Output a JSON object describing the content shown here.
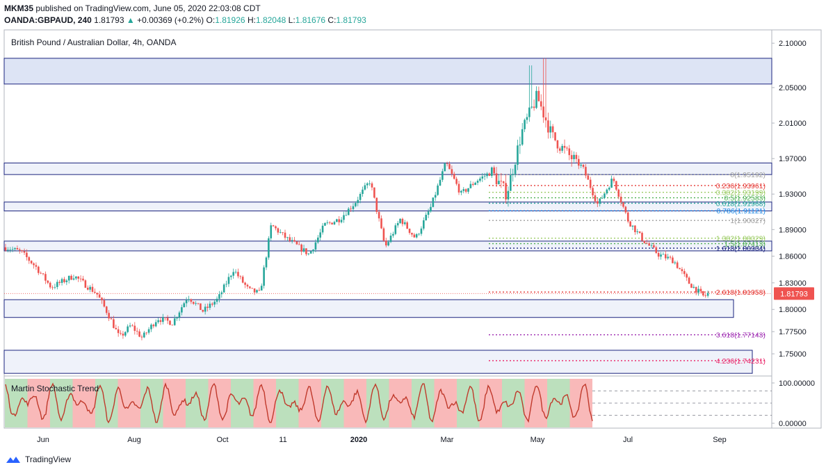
{
  "header": {
    "author": "MKM35",
    "published": "published on TradingView.com, June 05, 2020 22:03:08 CDT",
    "symbol": "OANDA:GBPAUD, 240",
    "last": "1.81793",
    "change_arrow": "▲",
    "change": "+0.00369 (+0.2%)",
    "o_label": "O:",
    "o": "1.81926",
    "h_label": "H:",
    "h": "1.82048",
    "l_label": "L:",
    "l": "1.81676",
    "c_label": "C:",
    "c": "1.81793"
  },
  "chart_title": "British Pound / Australian Dollar, 4h, OANDA",
  "footer": {
    "brand": "TradingView",
    "brand_icon": "tradingview-logo-icon"
  },
  "colors": {
    "candle_up": "#26a69a",
    "candle_down": "#ef5350",
    "zone_fill": "#dbe3f4",
    "zone_border": "#1a237e",
    "price_label_bg": "#ef5350",
    "stoch_line": "#c0392b",
    "stoch_green": "#a5d6a7",
    "stoch_red": "#f7a1a1"
  },
  "chart_data": {
    "type": "candlestick",
    "ylim": [
      1.725,
      2.115
    ],
    "yticks": [
      "2.10000",
      "2.05000",
      "2.01000",
      "1.97000",
      "1.93000",
      "1.89000",
      "1.86000",
      "1.83000",
      "1.80000",
      "1.77500",
      "1.75000"
    ],
    "ytick_values": [
      2.1,
      2.05,
      2.01,
      1.97,
      1.93,
      1.89,
      1.86,
      1.83,
      1.8,
      1.775,
      1.75
    ],
    "xticks": [
      "Jun",
      "Aug",
      "Oct",
      "11",
      "2020",
      "Mar",
      "May",
      "Jul",
      "Sep"
    ],
    "xtick_bold": "2020",
    "current_price": "1.81793",
    "current_price_value": 1.81793,
    "price_path": [
      [
        0,
        1.87
      ],
      [
        0.02,
        1.865
      ],
      [
        0.04,
        1.848
      ],
      [
        0.06,
        1.825
      ],
      [
        0.09,
        1.838
      ],
      [
        0.12,
        1.818
      ],
      [
        0.135,
        1.795
      ],
      [
        0.15,
        1.768
      ],
      [
        0.165,
        1.782
      ],
      [
        0.18,
        1.768
      ],
      [
        0.2,
        1.79
      ],
      [
        0.22,
        1.785
      ],
      [
        0.24,
        1.815
      ],
      [
        0.26,
        1.798
      ],
      [
        0.28,
        1.812
      ],
      [
        0.3,
        1.845
      ],
      [
        0.32,
        1.822
      ],
      [
        0.335,
        1.818
      ],
      [
        0.35,
        1.895
      ],
      [
        0.37,
        1.88
      ],
      [
        0.4,
        1.862
      ],
      [
        0.42,
        1.895
      ],
      [
        0.44,
        1.902
      ],
      [
        0.46,
        1.92
      ],
      [
        0.48,
        1.945
      ],
      [
        0.5,
        1.87
      ],
      [
        0.52,
        1.902
      ],
      [
        0.54,
        1.88
      ],
      [
        0.56,
        1.915
      ],
      [
        0.58,
        1.965
      ],
      [
        0.6,
        1.93
      ],
      [
        0.62,
        1.945
      ],
      [
        0.64,
        1.955
      ],
      [
        0.66,
        1.93
      ],
      [
        0.68,
        2.0
      ],
      [
        0.7,
        2.04
      ],
      [
        0.72,
        1.995
      ],
      [
        0.74,
        1.975
      ],
      [
        0.76,
        1.96
      ],
      [
        0.78,
        1.918
      ],
      [
        0.8,
        1.948
      ],
      [
        0.82,
        1.9
      ],
      [
        0.84,
        1.878
      ],
      [
        0.86,
        1.862
      ],
      [
        0.88,
        1.855
      ],
      [
        0.9,
        1.83
      ],
      [
        0.92,
        1.814
      ],
      [
        0.925,
        1.818
      ]
    ],
    "zones": [
      {
        "top": 2.083,
        "bottom": 2.054
      },
      {
        "top": 1.965,
        "bottom": 1.952
      },
      {
        "top": 1.921,
        "bottom": 1.911
      },
      {
        "top": 1.877,
        "bottom": 1.866
      },
      {
        "top": 1.811,
        "bottom": 1.791
      },
      {
        "top": 1.754,
        "bottom": 1.728
      }
    ],
    "fib_levels": [
      {
        "label": "0(1.95192)",
        "value": 1.95192,
        "color": "#9e9e9e"
      },
      {
        "label": "0.236(1.93961)",
        "value": 1.93961,
        "color": "#e53935"
      },
      {
        "label": "0.382(1.93199)",
        "value": 1.93199,
        "color": "#9ccc65"
      },
      {
        "label": "0.5(1.92583)",
        "value": 1.92583,
        "color": "#4caf50"
      },
      {
        "label": "0.618(1.91968)",
        "value": 1.91968,
        "color": "#26a69a"
      },
      {
        "label": "0.786(1.91121)",
        "value": 1.91121,
        "color": "#1e88e5"
      },
      {
        "label": "1(1.90027)",
        "value": 1.90027,
        "color": "#9e9e9e"
      },
      {
        "label": "1.382(1.88029)",
        "value": 1.88029,
        "color": "#9ccc65"
      },
      {
        "label": "1.5(1.87413)",
        "value": 1.87413,
        "color": "#4caf50"
      },
      {
        "label": "1.618(1.86904)",
        "value": 1.86904,
        "color": "#1a237e"
      },
      {
        "label": "2.618(1.81958)",
        "value": 1.81958,
        "color": "#e53935"
      },
      {
        "label": "3.618(1.77143)",
        "value": 1.77143,
        "color": "#9c27b0"
      },
      {
        "label": "4.236(1.74231)",
        "value": 1.74231,
        "color": "#e91e63"
      }
    ],
    "indicator": {
      "name": "Martin Stochastic Trend",
      "ylim": [
        0,
        100
      ],
      "yticks": [
        "100.00000",
        "0.00000"
      ],
      "ytick_values": [
        100,
        0
      ],
      "dashed_levels": [
        80,
        50,
        20
      ]
    }
  }
}
